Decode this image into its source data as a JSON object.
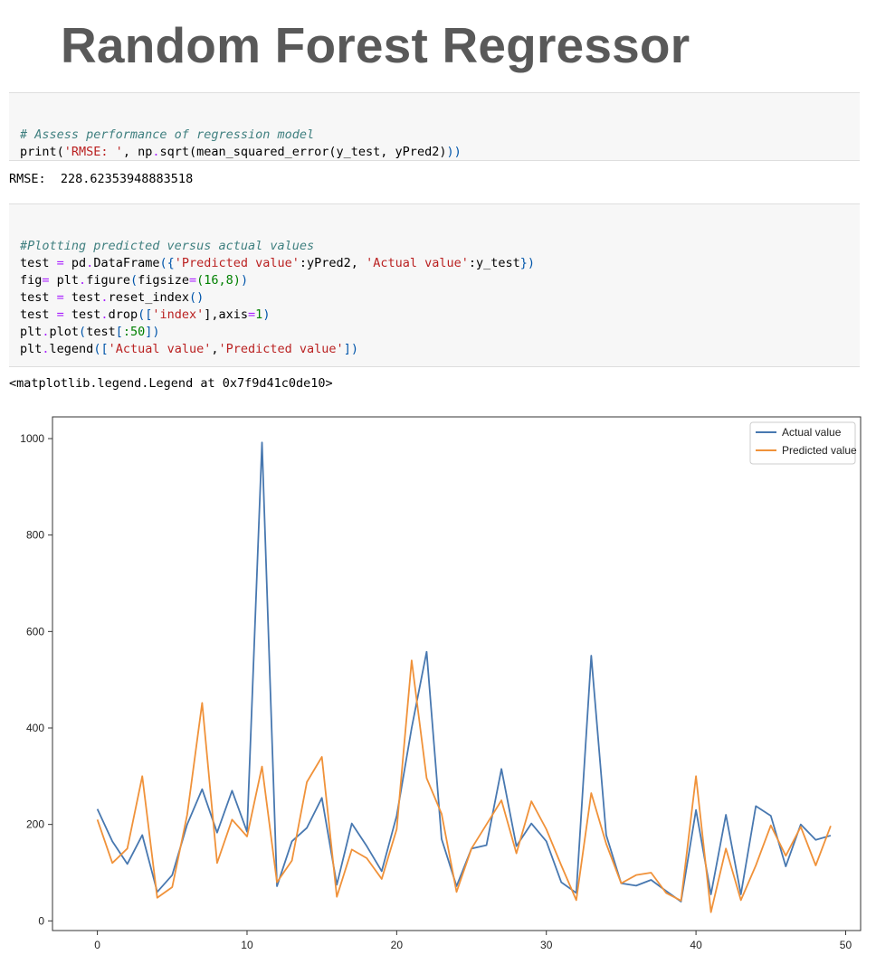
{
  "title": "Random Forest Regressor",
  "cell1": {
    "comment": "# Assess performance of regression model",
    "print_fn": "print(",
    "rmse_str": "'RMSE: '",
    "after_str": ", np",
    "dot1": ".",
    "sqrt_call": "sqrt(mean_squared_error(y_test, yPred2)",
    "close": "))"
  },
  "output1": "RMSE:  228.62353948883518",
  "cell2": {
    "comment": "#Plotting predicted versus actual values",
    "line2": {
      "a": "test ",
      "eq": "=",
      "b": " pd",
      "dot": ".",
      "c": "DataFrame",
      "open": "({",
      "s1": "'Predicted value'",
      "d": ":yPred2, ",
      "s2": "'Actual value'",
      "e": ":y_test",
      "close": "})"
    },
    "line3": {
      "a": "fig",
      "eq": "=",
      "b": " plt",
      "dot": ".",
      "c": "figure",
      "open": "(",
      "d": "figsize",
      "eq2": "=",
      "n1": "(16,8)",
      "close": ")"
    },
    "line4": {
      "a": "test ",
      "eq": "=",
      "b": " test",
      "dot": ".",
      "c": "reset_index",
      "close": "()"
    },
    "line5": {
      "a": "test ",
      "eq": "=",
      "b": " test",
      "dot": ".",
      "c": "drop",
      "open": "([",
      "s1": "'index'",
      "d": "],axis",
      "eq2": "=",
      "n1": "1",
      "close": ")"
    },
    "line6": {
      "a": "plt",
      "dot": ".",
      "c": "plot",
      "open": "(",
      "d": "test",
      "open2": "[",
      "n1": ":50",
      "close": "])"
    },
    "line7": {
      "a": "plt",
      "dot": ".",
      "c": "legend",
      "open": "([",
      "s1": "'Actual value'",
      "comma": ",",
      "s2": "'Predicted value'",
      "close": "])"
    }
  },
  "output2": "<matplotlib.legend.Legend at 0x7f9d41c0de10>",
  "chart_data": {
    "type": "line",
    "x": [
      0,
      1,
      2,
      3,
      4,
      5,
      6,
      7,
      8,
      9,
      10,
      11,
      12,
      13,
      14,
      15,
      16,
      17,
      18,
      19,
      20,
      21,
      22,
      23,
      24,
      25,
      26,
      27,
      28,
      29,
      30,
      31,
      32,
      33,
      34,
      35,
      36,
      37,
      38,
      39,
      40,
      41,
      42,
      43,
      44,
      45,
      46,
      47,
      48,
      49
    ],
    "series": [
      {
        "name": "Actual value",
        "color": "#4878b0",
        "values": [
          232,
          165,
          118,
          178,
          60,
          95,
          200,
          273,
          183,
          270,
          185,
          992,
          72,
          165,
          193,
          255,
          75,
          202,
          155,
          103,
          218,
          400,
          558,
          170,
          72,
          150,
          157,
          315,
          155,
          202,
          165,
          80,
          58,
          550,
          178,
          78,
          73,
          85,
          62,
          40,
          230,
          55,
          220,
          55,
          238,
          218,
          113,
          200,
          168,
          177
        ]
      },
      {
        "name": "Predicted value",
        "color": "#f0923a",
        "values": [
          210,
          120,
          150,
          300,
          48,
          70,
          220,
          452,
          120,
          210,
          175,
          320,
          80,
          125,
          288,
          340,
          50,
          148,
          130,
          87,
          190,
          540,
          296,
          222,
          60,
          150,
          200,
          250,
          140,
          248,
          190,
          115,
          43,
          265,
          160,
          78,
          95,
          100,
          58,
          42,
          300,
          18,
          150,
          43,
          115,
          198,
          135,
          195,
          115,
          197
        ]
      }
    ],
    "xticks": [
      "0",
      "10",
      "20",
      "30",
      "40",
      "50"
    ],
    "yticks": [
      "0",
      "200",
      "400",
      "600",
      "800",
      "1000"
    ],
    "xlim": [
      -3,
      51
    ],
    "ylim": [
      -20,
      1045
    ],
    "legend": "top-right"
  }
}
